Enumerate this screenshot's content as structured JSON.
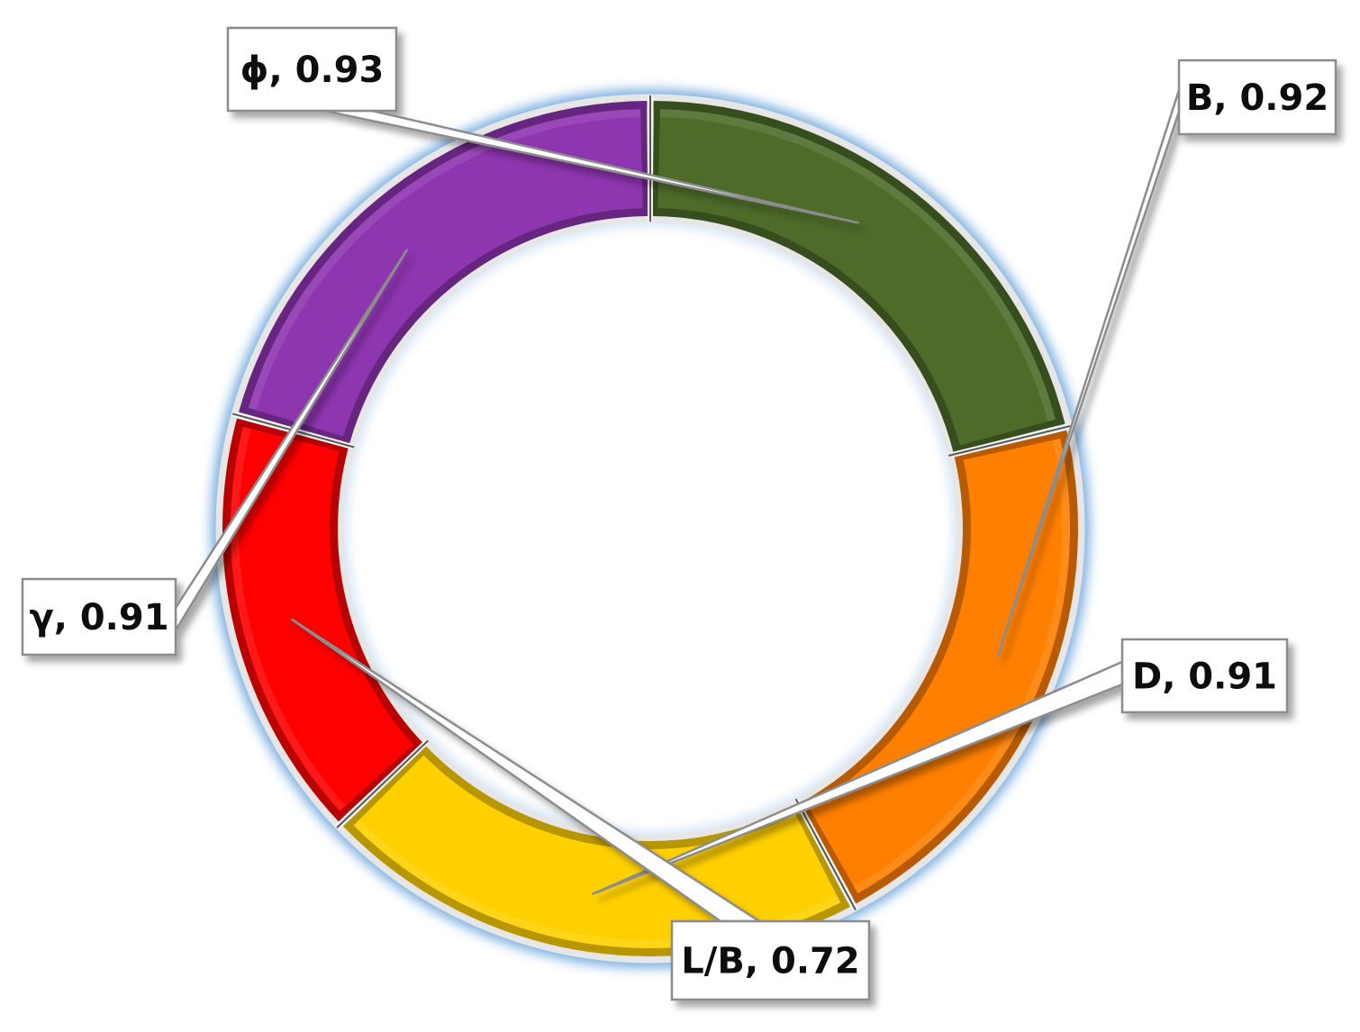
{
  "chart_data": {
    "type": "pie",
    "style": "doughnut",
    "legend": "none",
    "slices": [
      {
        "name": "ϕ",
        "value": 0.93,
        "label": "ϕ, 0.93",
        "color": "#4e6b2a"
      },
      {
        "name": "B",
        "value": 0.92,
        "label": "B, 0.92",
        "color": "#ff7f00"
      },
      {
        "name": "D",
        "value": 0.91,
        "label": "D, 0.91",
        "color": "#ffd000"
      },
      {
        "name": "L/B",
        "value": 0.72,
        "label": "L/B, 0.72",
        "color": "#ff0000"
      },
      {
        "name": "γ",
        "value": 0.91,
        "label": "γ, 0.91",
        "color": "#8e35b0"
      }
    ]
  }
}
